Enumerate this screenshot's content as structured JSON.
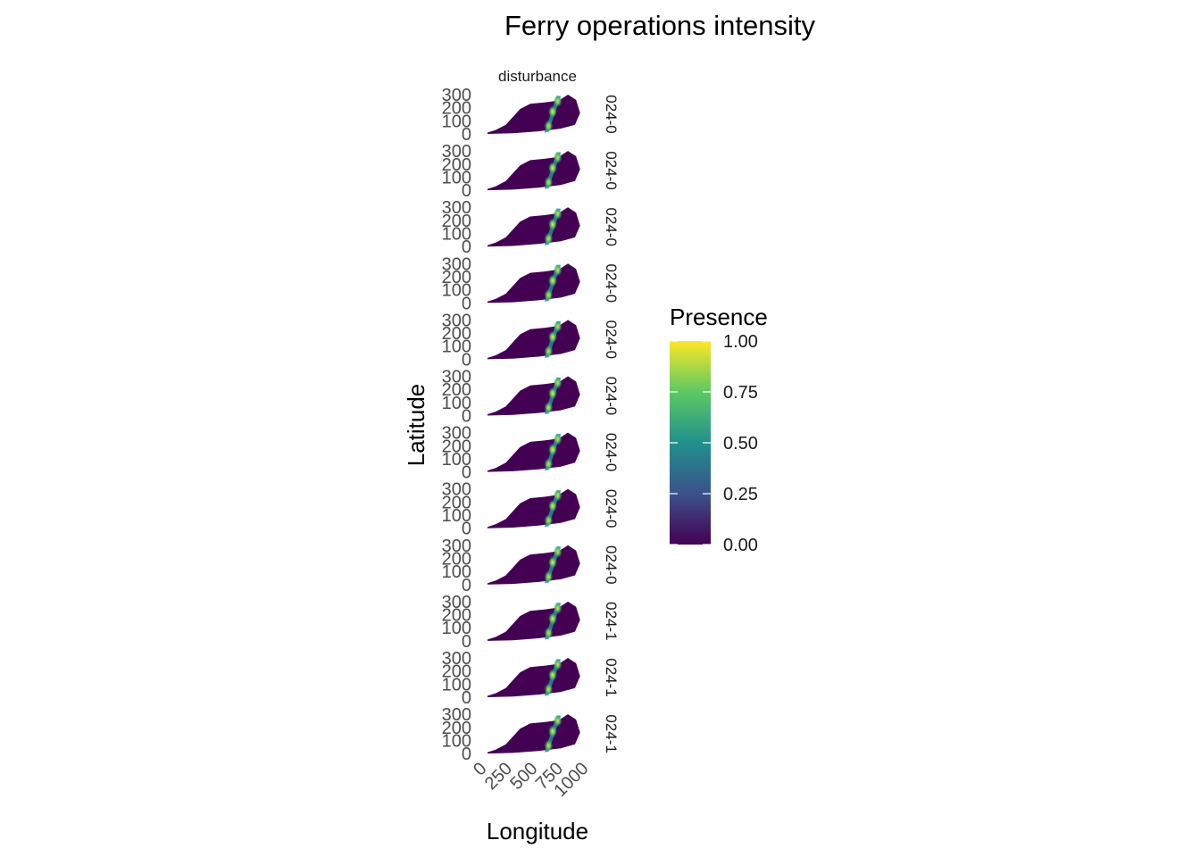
{
  "chart_data": {
    "type": "heatmap",
    "title": "Ferry operations intensity",
    "xlabel": "Longitude",
    "ylabel": "Latitude",
    "xlim": [
      0,
      1000
    ],
    "ylim": [
      0,
      300
    ],
    "x_ticks": [
      "0",
      "250",
      "500",
      "750",
      "1000"
    ],
    "y_ticks": [
      "0",
      "100",
      "200",
      "300"
    ],
    "column_facet": "disturbance",
    "row_facets": [
      "024-0",
      "024-0",
      "024-0",
      "024-0",
      "024-0",
      "024-0",
      "024-0",
      "024-0",
      "024-0",
      "024-1",
      "024-1",
      "024-1"
    ],
    "grid": false,
    "legend": {
      "title": "Presence",
      "position": "right",
      "ticks": [
        "0.00",
        "0.25",
        "0.50",
        "0.75",
        "1.00"
      ],
      "range": [
        0,
        1
      ],
      "colors": [
        "#440154",
        "#3b528b",
        "#21908c",
        "#5dc863",
        "#fde725"
      ]
    },
    "background_color": "#440154"
  }
}
